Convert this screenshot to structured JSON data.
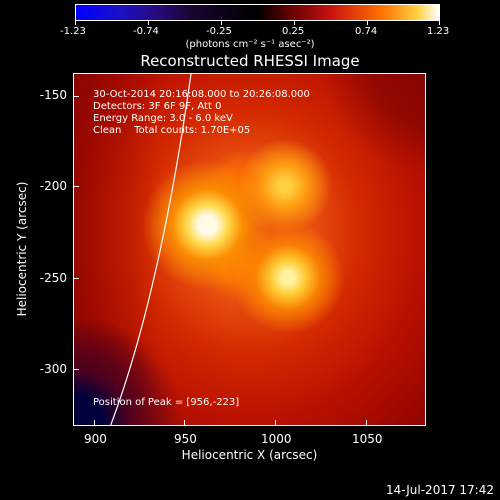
{
  "colorbar": {
    "ticks": [
      "-1.23",
      "-0.74",
      "-0.25",
      "0.25",
      "0.74",
      "1.23"
    ],
    "unit": "(photons cm⁻² s⁻¹ asec⁻²)"
  },
  "title": "Reconstructed RHESSI Image",
  "info": {
    "time": "30-Oct-2014 20:16:08.000 to 20:26:08.000",
    "detectors": "Detectors: 3F 6F 9F, Att 0",
    "energy": "Energy Range: 3.0 - 6.0 keV",
    "clean": "Clean    Total counts: 1.70E+05",
    "peak": "Position of Peak = [956,-223]"
  },
  "axes": {
    "xlabel": "Heliocentric X (arcsec)",
    "ylabel": "Heliocentric Y (arcsec)",
    "xticks": [
      "900",
      "950",
      "1000",
      "1050"
    ],
    "yticks": [
      "-150",
      "-200",
      "-250",
      "-300"
    ]
  },
  "footer": "14-Jul-2017 17:42",
  "colors": {
    "limb_line": "#ffffff",
    "background": "#000000"
  }
}
